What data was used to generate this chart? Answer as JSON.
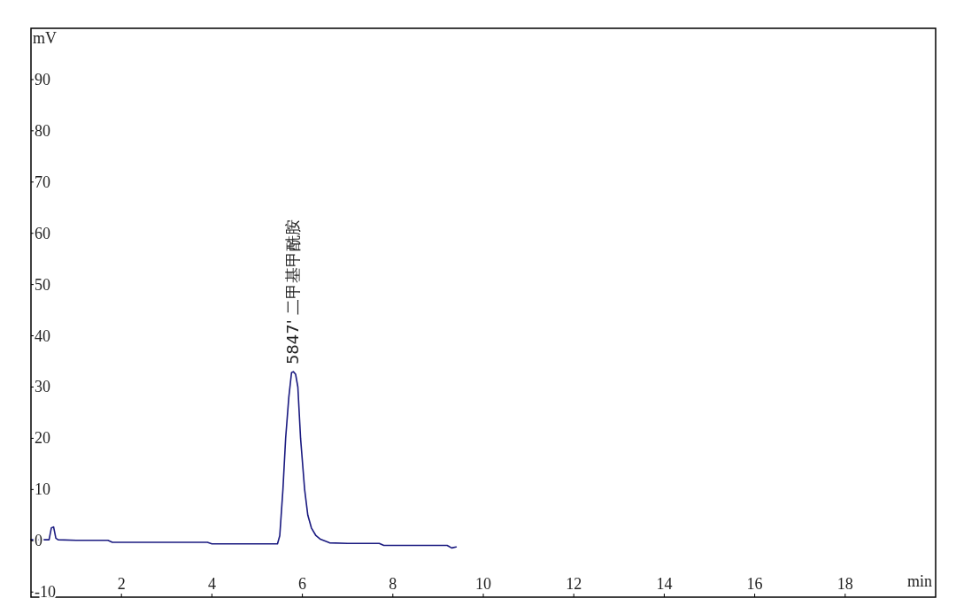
{
  "chart_data": {
    "type": "line",
    "xlabel": "min",
    "ylabel": "mV",
    "xlim": [
      0,
      20
    ],
    "ylim": [
      -11,
      100
    ],
    "xticks": [
      2,
      4,
      6,
      8,
      10,
      12,
      14,
      16,
      18
    ],
    "yticks": [
      {
        "value": -10,
        "label": "-10"
      },
      0,
      10,
      20,
      30,
      40,
      50,
      60,
      70,
      80,
      90
    ],
    "grid": false,
    "marker": "none",
    "line_style": "solid",
    "series": [
      {
        "color": "#1a1a80",
        "x": [
          0,
          0.4,
          0.45,
          0.5,
          0.55,
          0.6,
          1.0,
          1.7,
          1.8,
          3.0,
          3.9,
          4.0,
          5.0,
          5.45,
          5.5,
          5.57,
          5.63,
          5.7,
          5.76,
          5.8,
          5.85,
          5.9,
          5.96,
          6.05,
          6.12,
          6.2,
          6.3,
          6.4,
          6.6,
          7.0,
          7.7,
          7.8,
          8.5,
          9.2,
          9.3,
          9.4
        ],
        "values": [
          0.2,
          0.2,
          2.5,
          2.7,
          0.5,
          0.2,
          0.1,
          0.1,
          -0.3,
          -0.3,
          -0.3,
          -0.6,
          -0.6,
          -0.6,
          1,
          10,
          20,
          28,
          32.8,
          33,
          32.5,
          30,
          20,
          10,
          5,
          2.5,
          1,
          0.3,
          -0.4,
          -0.5,
          -0.5,
          -0.9,
          -0.9,
          -0.9,
          -1.4,
          -1.2
        ]
      }
    ],
    "annotations": [
      {
        "text": "5847'  二甲基甲酰胺",
        "x": 5.8,
        "y": 33
      }
    ]
  }
}
